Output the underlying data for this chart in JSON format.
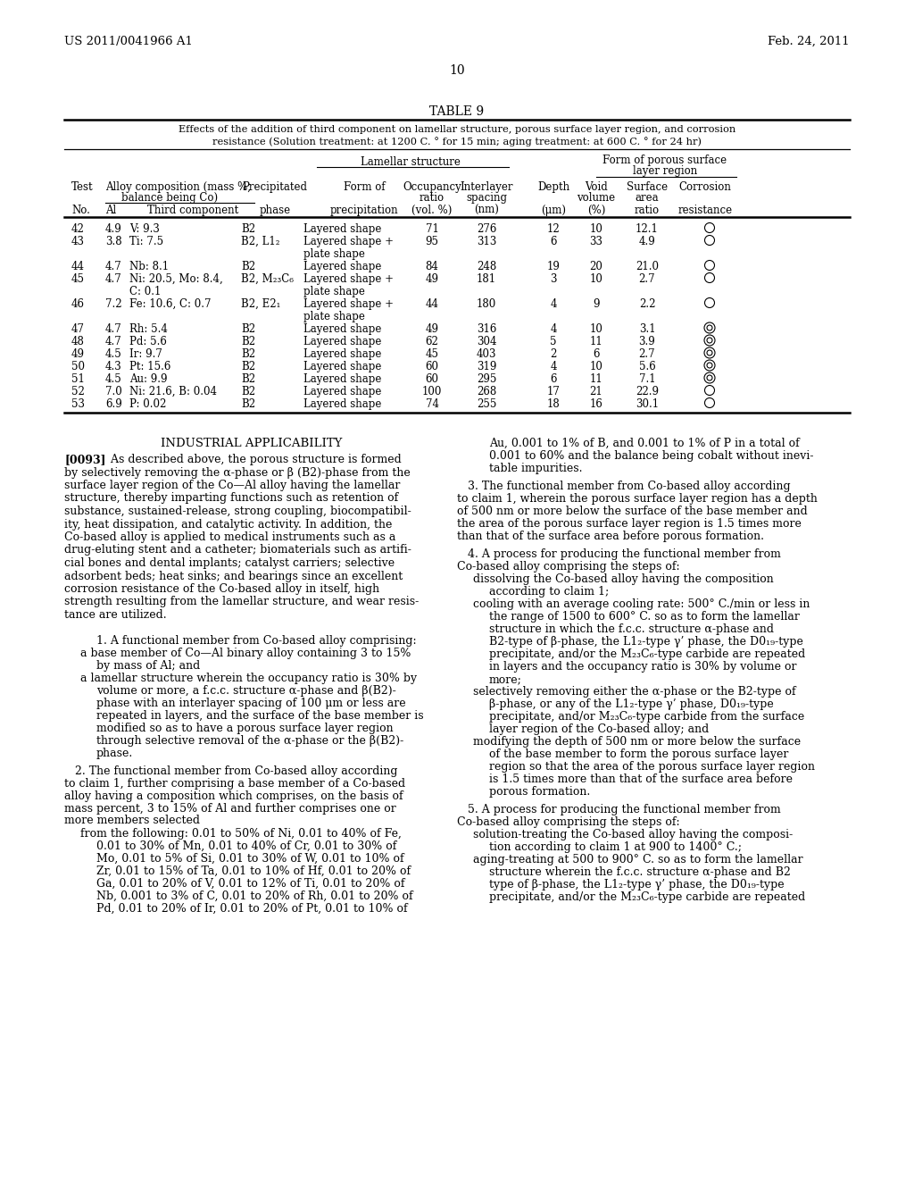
{
  "page_header_left": "US 2011/0041966 A1",
  "page_header_right": "Feb. 24, 2011",
  "page_number": "10",
  "table_title": "TABLE 9",
  "table_caption_line1": "Effects of the addition of third component on lamellar structure, porous surface layer region, and corrosion",
  "table_caption_line2": "resistance (Solution treatment: at 1200 C. ° for 15 min; aging treatment: at 600 C. ° for 24 hr)",
  "table_data": [
    [
      "42",
      "4.9",
      "V: 9.3",
      "B2",
      "Layered shape",
      "71",
      "276",
      "12",
      "10",
      "12.1",
      "O"
    ],
    [
      "43",
      "3.8",
      "Ti: 7.5",
      "B2, L1₂",
      "Layered shape +\nplate shape",
      "95",
      "313",
      "6",
      "33",
      "4.9",
      "O"
    ],
    [
      "44",
      "4.7",
      "Nb: 8.1",
      "B2",
      "Layered shape",
      "84",
      "248",
      "19",
      "20",
      "21.0",
      "O"
    ],
    [
      "45",
      "4.7",
      "Ni: 20.5, Mo: 8.4,\nC: 0.1",
      "B2, M₂₃C₆",
      "Layered shape +\nplate shape",
      "49",
      "181",
      "3",
      "10",
      "2.7",
      "O"
    ],
    [
      "46",
      "7.2",
      "Fe: 10.6, C: 0.7",
      "B2, E2₁",
      "Layered shape +\nplate shape",
      "44",
      "180",
      "4",
      "9",
      "2.2",
      "O"
    ],
    [
      "47",
      "4.7",
      "Rh: 5.4",
      "B2",
      "Layered shape",
      "49",
      "316",
      "4",
      "10",
      "3.1",
      "DC"
    ],
    [
      "48",
      "4.7",
      "Pd: 5.6",
      "B2",
      "Layered shape",
      "62",
      "304",
      "5",
      "11",
      "3.9",
      "DC"
    ],
    [
      "49",
      "4.5",
      "Ir: 9.7",
      "B2",
      "Layered shape",
      "45",
      "403",
      "2",
      "6",
      "2.7",
      "DC"
    ],
    [
      "50",
      "4.3",
      "Pt: 15.6",
      "B2",
      "Layered shape",
      "60",
      "319",
      "4",
      "10",
      "5.6",
      "DC"
    ],
    [
      "51",
      "4.5",
      "Au: 9.9",
      "B2",
      "Layered shape",
      "60",
      "295",
      "6",
      "11",
      "7.1",
      "DC"
    ],
    [
      "52",
      "7.0",
      "Ni: 21.6, B: 0.04",
      "B2",
      "Layered shape",
      "100",
      "268",
      "17",
      "21",
      "22.9",
      "O"
    ],
    [
      "53",
      "6.9",
      "P: 0.02",
      "B2",
      "Layered shape",
      "74",
      "255",
      "18",
      "16",
      "30.1",
      "O"
    ]
  ],
  "ia_title": "INDUSTRIAL APPLICABILITY",
  "ia_para": "[0093]  As described above, the porous structure is formed by selectively removing the α-phase or β (B2)-phase from the surface layer region of the Co—Al alloy having the lamellar structure, thereby imparting functions such as retention of substance, sustained-release, strong coupling, biocompatibility, heat dissipation, and catalytic activity. In addition, the Co-based alloy is applied to medical instruments such as a drug-eluting stent and a catheter; biomaterials such as artificial bones and dental implants; catalyst carriers; selective adsorbent beds; heat sinks; and bearings since an excellent corrosion resistance of the Co-based alloy in itself, high strength resulting from the lamellar structure, and wear resistance are utilized.",
  "left_col_paras": [
    {
      "indent": 2,
      "text": "1. A functional member from Co-based alloy comprising:"
    },
    {
      "indent": 1,
      "text": "a base member of Co—Al binary alloy containing 3 to 15%"
    },
    {
      "indent": 2,
      "text": "by mass of Al; and"
    },
    {
      "indent": 1,
      "text": "a lamellar structure wherein the occupancy ratio is 30% by"
    },
    {
      "indent": 2,
      "text": "volume or more, a f.c.c. structure α-phase and β(B2)-"
    },
    {
      "indent": 2,
      "text": "phase with an interlayer spacing of 100 μm or less are"
    },
    {
      "indent": 2,
      "text": "repeated in layers, and the surface of the base member is"
    },
    {
      "indent": 2,
      "text": "modified so as to have a porous surface layer region"
    },
    {
      "indent": 2,
      "text": "through selective removal of the α-phase or the β(B2)-"
    },
    {
      "indent": 2,
      "text": "phase."
    },
    {
      "indent": 0,
      "text": "   2. The functional member from Co-based alloy according to claim 1, further comprising a base member of a Co-based alloy having a composition which comprises, on the basis of mass percent, 3 to 15% of Al and further comprises one or more members selected"
    },
    {
      "indent": 1,
      "text": "from the following: 0.01 to 50% of Ni, 0.01 to 40% of Fe, 0.01 to 30% of Mn, 0.01 to 40% of Cr, 0.01 to 30% of"
    },
    {
      "indent": 2,
      "text": "Mo, 0.01 to 5% of Si, 0.01 to 30% of W, 0.01 to 10% of"
    },
    {
      "indent": 2,
      "text": "Zr, 0.01 to 15% of Ta, 0.01 to 10% of Hf, 0.01 to 20% of"
    },
    {
      "indent": 2,
      "text": "Ga, 0.01 to 20% of V, 0.01 to 12% of Ti, 0.01 to 20% of"
    },
    {
      "indent": 2,
      "text": "Nb, 0.001 to 3% of C, 0.01 to 20% of Rh, 0.01 to 20% of"
    },
    {
      "indent": 2,
      "text": "Pd, 0.01 to 20% of Ir, 0.01 to 20% of Pt, 0.01 to 10% of"
    }
  ],
  "right_col_paras": [
    {
      "indent": 2,
      "text": "Au, 0.001 to 1% of B, and 0.001 to 1% of P in a total of"
    },
    {
      "indent": 2,
      "text": "0.001 to 60% and the balance being cobalt without inevi-"
    },
    {
      "indent": 2,
      "text": "table impurities."
    },
    {
      "indent": 0,
      "text": "   3. The functional member from Co-based alloy according to claim 1, wherein the porous surface layer region has a depth of 500 nm or more below the surface of the base member and the area of the porous surface layer region is 1.5 times more than that of the surface area before porous formation."
    },
    {
      "indent": 0,
      "text": "   4. A process for producing the functional member from Co-based alloy comprising the steps of:"
    },
    {
      "indent": 1,
      "text": "dissolving the Co-based alloy having the composition"
    },
    {
      "indent": 2,
      "text": "according to claim 1;"
    },
    {
      "indent": 1,
      "text": "cooling with an average cooling rate: 500° C./min or less in"
    },
    {
      "indent": 2,
      "text": "the range of 1500 to 600° C. so as to form the lamellar"
    },
    {
      "indent": 2,
      "text": "structure in which the f.c.c. structure α-phase and"
    },
    {
      "indent": 2,
      "text": "B2-type of β-phase, the L1₂-type γ’ phase, the D0₁₉-type"
    },
    {
      "indent": 2,
      "text": "precipitate, and/or the M₂₃C₆-type carbide are repeated"
    },
    {
      "indent": 2,
      "text": "in layers and the occupancy ratio is 30% by volume or"
    },
    {
      "indent": 2,
      "text": "more;"
    },
    {
      "indent": 1,
      "text": "selectively removing either the α-phase or the B2-type of"
    },
    {
      "indent": 2,
      "text": "β-phase, or any of the L1₂-type γ’ phase, D0₁₉-type"
    },
    {
      "indent": 2,
      "text": "precipitate, and/or M₂₃C₆-type carbide from the surface"
    },
    {
      "indent": 2,
      "text": "layer region of the Co-based alloy; and"
    },
    {
      "indent": 1,
      "text": "modifying the depth of 500 nm or more below the surface"
    },
    {
      "indent": 2,
      "text": "of the base member to form the porous surface layer"
    },
    {
      "indent": 2,
      "text": "region so that the area of the porous surface layer region"
    },
    {
      "indent": 2,
      "text": "is 1.5 times more than that of the surface area before"
    },
    {
      "indent": 2,
      "text": "porous formation."
    },
    {
      "indent": 0,
      "text": "   5. A process for producing the functional member from Co-based alloy comprising the steps of:"
    },
    {
      "indent": 1,
      "text": "solution-treating the Co-based alloy having the composi-"
    },
    {
      "indent": 2,
      "text": "tion according to claim 1 at 900 to 1400° C.;"
    },
    {
      "indent": 1,
      "text": "aging-treating at 500 to 900° C. so as to form the lamellar"
    },
    {
      "indent": 2,
      "text": "structure wherein the f.c.c. structure α-phase and B2"
    },
    {
      "indent": 2,
      "text": "type of β-phase, the L1₂-type γ’ phase, the D0₁₉-type"
    },
    {
      "indent": 2,
      "text": "precipitate, and/or the M₂₃C₆-type carbide are repeated"
    }
  ]
}
